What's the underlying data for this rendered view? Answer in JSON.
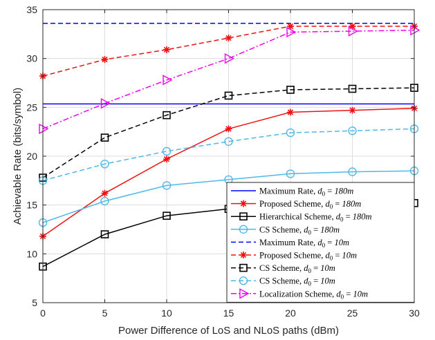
{
  "chart_data": {
    "type": "line",
    "xlabel": "Power Difference of LoS and NLoS paths (dBm)",
    "ylabel": "Achievable Rate (bits/symbol)",
    "xlim": [
      0,
      30
    ],
    "ylim": [
      5,
      35
    ],
    "xticks": [
      0,
      5,
      10,
      15,
      20,
      25,
      30
    ],
    "yticks": [
      5,
      10,
      15,
      20,
      25,
      30,
      35
    ],
    "grid": true,
    "legend_position": "bottom-right",
    "x": [
      0,
      5,
      10,
      15,
      20,
      25,
      30
    ],
    "series": [
      {
        "name": "Maximum Rate, d0 = 180m",
        "legend_main": "Maximum Rate, ",
        "legend_sub": "180m",
        "color": "#0000ff",
        "dash": "solid",
        "marker": "none",
        "values": [
          25.35,
          25.35,
          25.35,
          25.35,
          25.35,
          25.35,
          25.35
        ]
      },
      {
        "name": "Proposed Scheme, d0 = 180m",
        "legend_main": "Proposed Scheme, ",
        "legend_sub": "180m",
        "color": "#ee1111",
        "dash": "solid",
        "marker": "star",
        "values": [
          11.8,
          16.2,
          19.7,
          22.8,
          24.5,
          24.7,
          24.9
        ]
      },
      {
        "name": "Hierarchical Scheme, d0 = 180m",
        "legend_main": "Hierarchical Scheme, ",
        "legend_sub": "180m",
        "color": "#000000",
        "dash": "solid",
        "marker": "square",
        "values": [
          8.7,
          12.0,
          13.9,
          14.6,
          15.0,
          15.1,
          15.2
        ]
      },
      {
        "name": "CS Scheme, d0 = 180m",
        "legend_main": "CS Scheme, ",
        "legend_sub": "180m",
        "color": "#4db8e8",
        "dash": "solid",
        "marker": "circle",
        "values": [
          13.2,
          15.4,
          17.0,
          17.6,
          18.2,
          18.4,
          18.5
        ]
      },
      {
        "name": "Maximum Rate, d0 = 10m",
        "legend_main": "Maximum Rate, ",
        "legend_sub": "10m",
        "color": "#0000ff",
        "dash": "dashed",
        "marker": "none",
        "values": [
          33.6,
          33.6,
          33.6,
          33.6,
          33.6,
          33.6,
          33.6
        ]
      },
      {
        "name": "Proposed Scheme, d0 = 10m",
        "legend_main": "Proposed Scheme, ",
        "legend_sub": "10m",
        "color": "#ee1111",
        "dash": "dashed",
        "marker": "star",
        "values": [
          28.2,
          29.9,
          30.9,
          32.1,
          33.3,
          33.3,
          33.3
        ]
      },
      {
        "name": "CS Scheme, d0 = 10m",
        "legend_main": "CS Scheme, ",
        "legend_sub": "10m",
        "color": "#000000",
        "dash": "dashed",
        "marker": "square",
        "values": [
          17.8,
          21.9,
          24.2,
          26.2,
          26.8,
          26.9,
          27.0
        ]
      },
      {
        "name": "CS Scheme, d0 = 10m",
        "legend_main": "CS Scheme, ",
        "legend_sub": "10m",
        "color": "#4db8e8",
        "dash": "dashed",
        "marker": "circle",
        "values": [
          17.5,
          19.2,
          20.5,
          21.5,
          22.4,
          22.6,
          22.8
        ]
      },
      {
        "name": "Localization Scheme, d0 = 10m",
        "legend_main": "Localization Scheme, ",
        "legend_sub": "10m",
        "color": "#ee00ee",
        "dash": "dashdot",
        "marker": "triangle-right",
        "values": [
          22.8,
          25.4,
          27.8,
          30.0,
          32.7,
          32.8,
          32.9
        ]
      }
    ]
  }
}
